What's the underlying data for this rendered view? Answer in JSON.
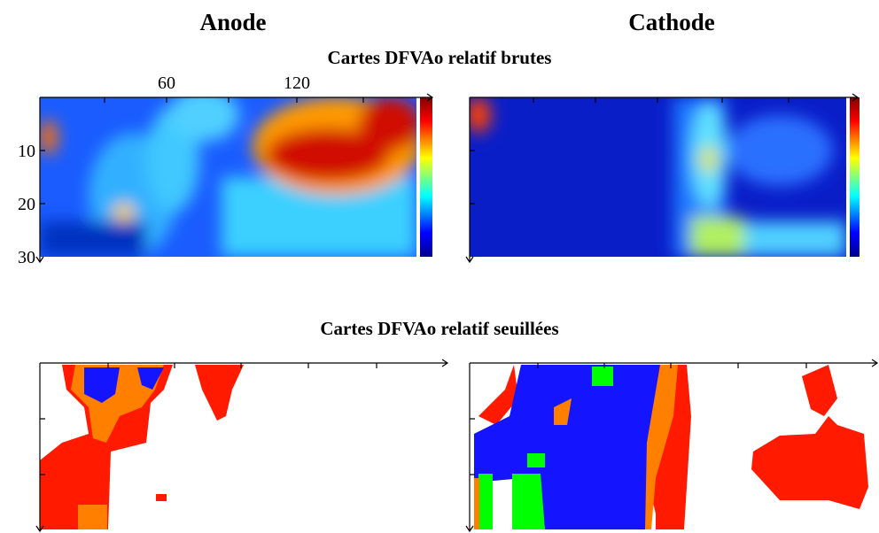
{
  "figure": {
    "columns": [
      "Anode",
      "Cathode"
    ],
    "sections": [
      "Cartes DFVAo relatif brutes",
      "Cartes DFVAo relatif seuillées"
    ],
    "x_ticks": [
      60,
      120
    ],
    "y_ticks": [
      10,
      20,
      30
    ]
  }
}
